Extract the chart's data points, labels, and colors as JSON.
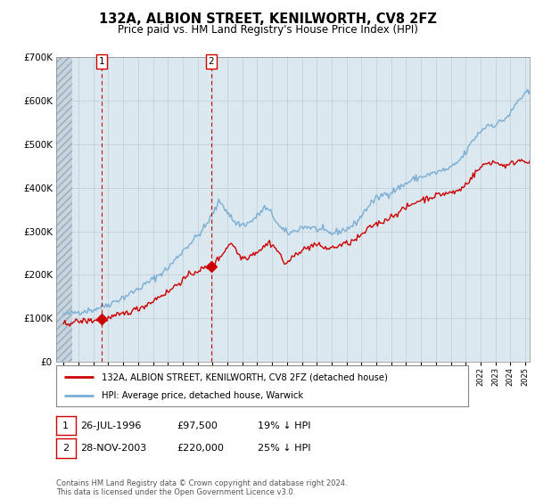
{
  "title": "132A, ALBION STREET, KENILWORTH, CV8 2FZ",
  "subtitle": "Price paid vs. HM Land Registry's House Price Index (HPI)",
  "legend_line1": "132A, ALBION STREET, KENILWORTH, CV8 2FZ (detached house)",
  "legend_line2": "HPI: Average price, detached house, Warwick",
  "transaction1_label": "1",
  "transaction1_date": "26-JUL-1996",
  "transaction1_date_num": 1996.57,
  "transaction1_price": 97500,
  "transaction2_label": "2",
  "transaction2_date": "28-NOV-2003",
  "transaction2_date_num": 2003.91,
  "transaction2_price": 220000,
  "footer": "Contains HM Land Registry data © Crown copyright and database right 2024.\nThis data is licensed under the Open Government Licence v3.0.",
  "hatch_end": 1994.58,
  "ylim": [
    0,
    700000
  ],
  "xlim_start": 1993.5,
  "xlim_end": 2025.3,
  "red_color": "#cc0000",
  "blue_color": "#7aaed4",
  "background_color": "#dce8f0",
  "grid_color": "#c0ccd4",
  "dashed_line_color": "#cc0000",
  "t1_row": "26-JUL-1996",
  "t1_price_str": "£97,500",
  "t1_hpi_str": "19% ↓ HPI",
  "t2_row": "28-NOV-2003",
  "t2_price_str": "£220,000",
  "t2_hpi_str": "25% ↓ HPI"
}
